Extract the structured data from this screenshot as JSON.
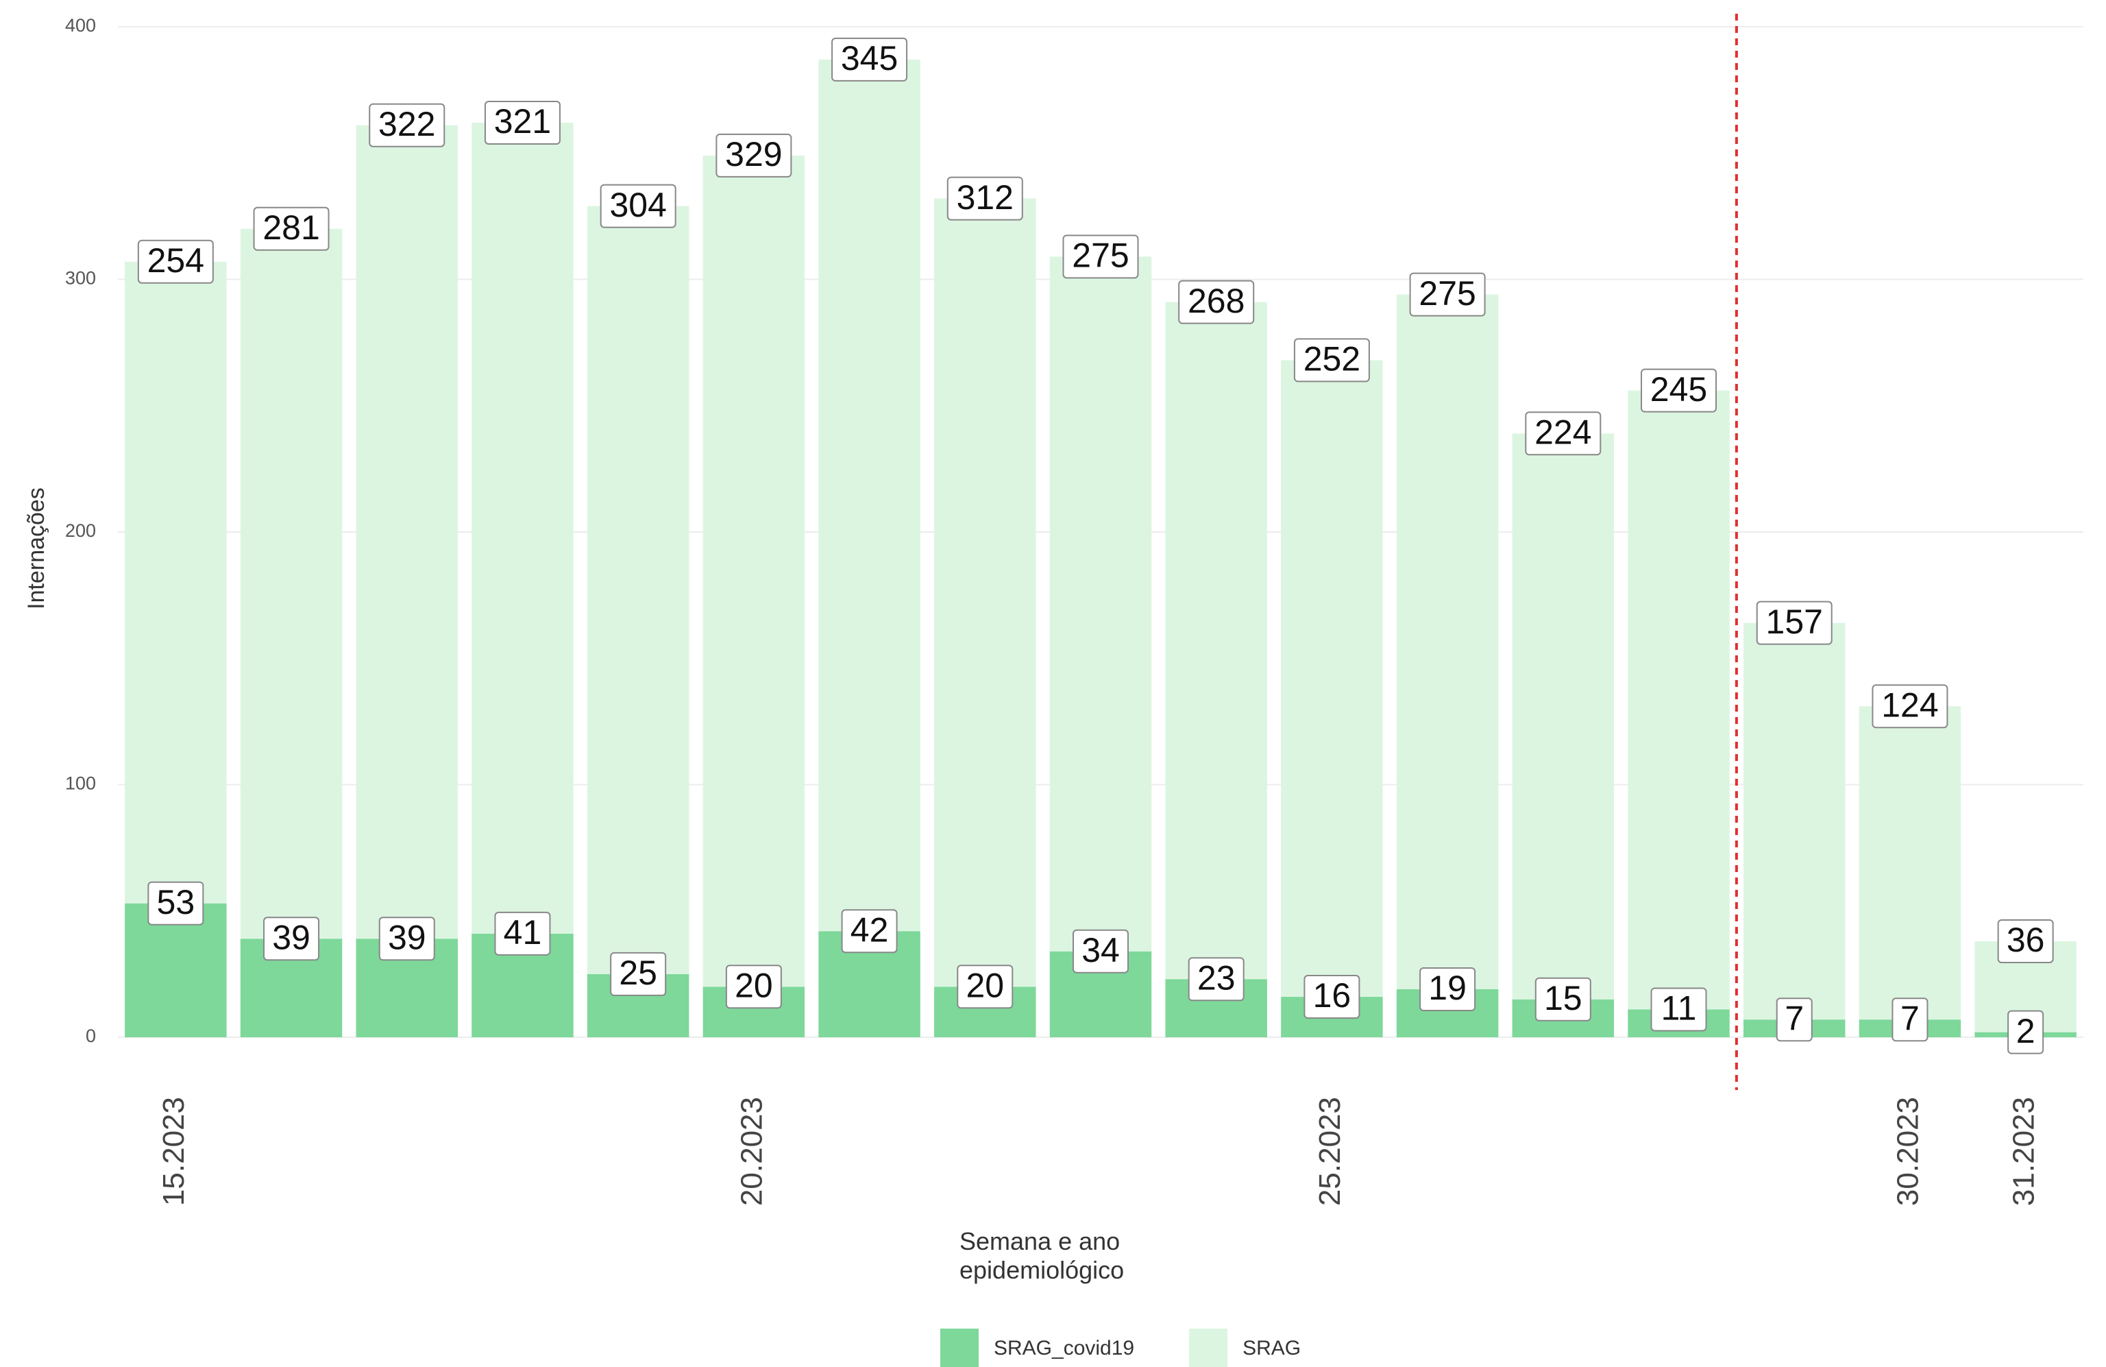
{
  "chart_data": {
    "type": "stacked_bar",
    "x_label": "Semana e ano\nepidemiológico",
    "y_label": "Internações",
    "categories": [
      "15.2023",
      null,
      null,
      null,
      null,
      "20.2023",
      null,
      null,
      null,
      null,
      "25.2023",
      null,
      null,
      null,
      null,
      "30.2023",
      "31.2023"
    ],
    "series": [
      {
        "name": "SRAG_covid19",
        "color": "#7dd89a",
        "values": [
          53,
          39,
          39,
          41,
          25,
          20,
          42,
          20,
          34,
          23,
          16,
          19,
          15,
          11,
          7,
          7,
          2
        ]
      },
      {
        "name": "SRAG",
        "color": "#dcf5e1",
        "values": [
          254,
          281,
          322,
          321,
          304,
          329,
          345,
          312,
          275,
          268,
          252,
          275,
          224,
          245,
          157,
          124,
          36
        ]
      }
    ],
    "ylim": [
      0,
      400
    ],
    "yticks": [
      0,
      100,
      200,
      300,
      400
    ],
    "grid": true
  }
}
